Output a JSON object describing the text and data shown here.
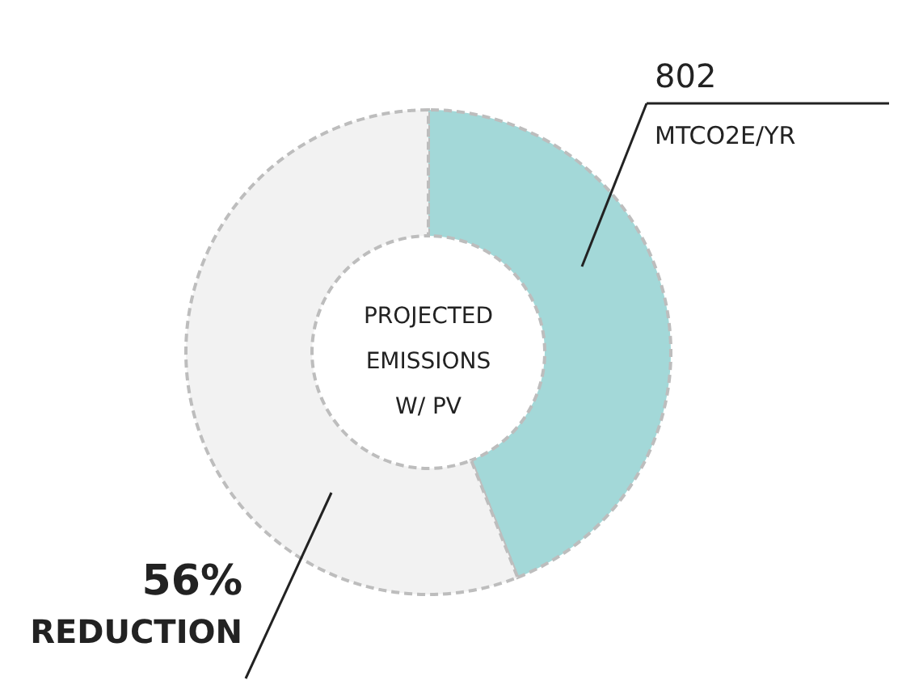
{
  "chart_data": {
    "type": "donut",
    "categories": [
      null,
      null
    ],
    "values": [
      44,
      56
    ],
    "colors": [
      "#a3d8d8",
      "#f2f2f2"
    ],
    "annotations": [
      "802",
      "MTCO2E/YR",
      "56%",
      "REDUCTION",
      "PROJECTED",
      "EMISSIONS",
      "W/ PV"
    ]
  }
}
